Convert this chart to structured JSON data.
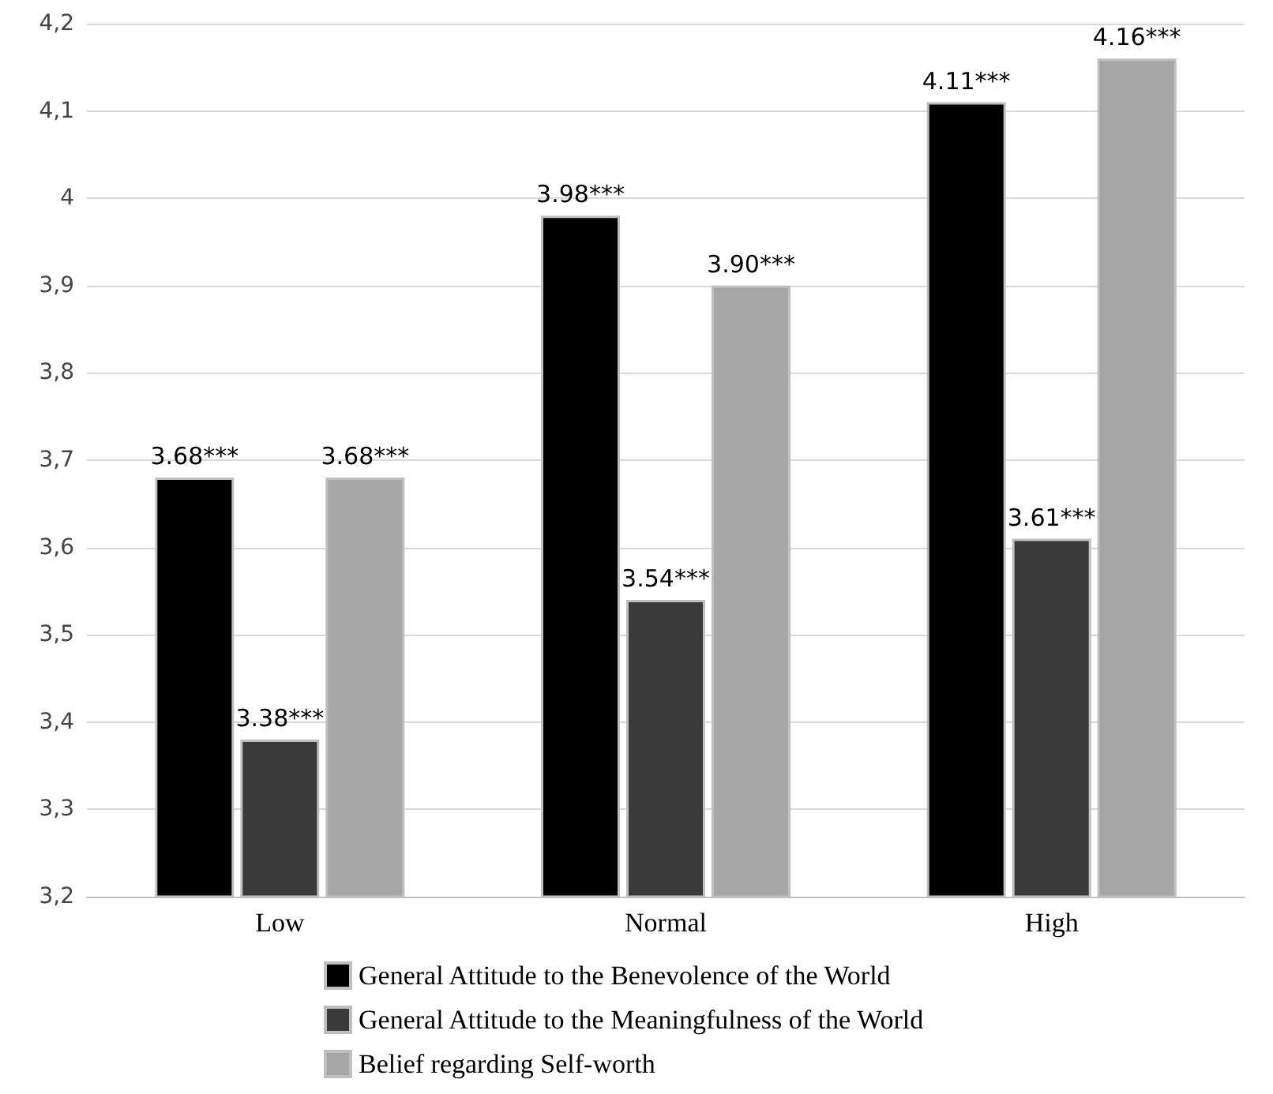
{
  "chart_data": {
    "type": "bar",
    "categories": [
      "Low",
      "Normal",
      "High"
    ],
    "series": [
      {
        "name": "General Attitude to the Benevolence of the World",
        "color": "#000000",
        "values": [
          3.68,
          3.98,
          4.11
        ],
        "value_labels": [
          "3.68***",
          "3.98***",
          "4.11***"
        ]
      },
      {
        "name": "General Attitude to the Meaningfulness of the World",
        "color": "#3a3a3a",
        "values": [
          3.38,
          3.54,
          3.61
        ],
        "value_labels": [
          "3.38***",
          "3.54***",
          "3.61***"
        ]
      },
      {
        "name": "Belief regarding Self-worth",
        "color": "#a6a6a6",
        "values": [
          3.68,
          3.9,
          4.16
        ],
        "value_labels": [
          "3.68***",
          "3.90***",
          "4.16***"
        ]
      }
    ],
    "ylim": [
      3.2,
      4.2
    ],
    "yticks": [
      {
        "value": 3.2,
        "label": "3,2"
      },
      {
        "value": 3.3,
        "label": "3,3"
      },
      {
        "value": 3.4,
        "label": "3,4"
      },
      {
        "value": 3.5,
        "label": "3,5"
      },
      {
        "value": 3.6,
        "label": "3,6"
      },
      {
        "value": 3.7,
        "label": "3,7"
      },
      {
        "value": 3.8,
        "label": "3,8"
      },
      {
        "value": 3.9,
        "label": "3,9"
      },
      4,
      {
        "value": 4.1,
        "label": "4,1"
      },
      {
        "value": 4.2,
        "label": "4,2"
      }
    ],
    "grid": "y",
    "legend": "bottom"
  }
}
